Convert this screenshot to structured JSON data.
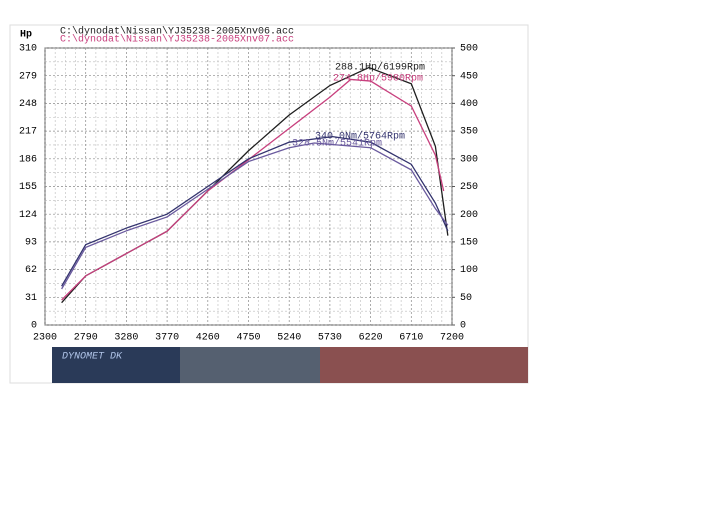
{
  "chart_data": {
    "type": "line",
    "files": [
      "C:\\dynodat\\Nissan\\YJ35238-2005Xnv06.acc",
      "C:\\dynodat\\Nissan\\YJ35238-2005Xnv07.acc"
    ],
    "file_colors": [
      "#222222",
      "#c8407e"
    ],
    "y_label": "Hp",
    "xlim": [
      2300,
      7200
    ],
    "xticks": [
      2300,
      2790,
      3280,
      3770,
      4260,
      4750,
      5240,
      5730,
      6220,
      6710,
      7200
    ],
    "ylim": [
      0,
      310
    ],
    "yticks": [
      0,
      31,
      62,
      93,
      124,
      155,
      186,
      217,
      248,
      279,
      310
    ],
    "y2lim": [
      0,
      500
    ],
    "y2ticks": [
      0,
      50,
      100,
      150,
      200,
      250,
      300,
      350,
      400,
      450,
      500
    ],
    "grid": true,
    "series": [
      {
        "color": "#1e1e1e",
        "x": [
          2500,
          2790,
          3280,
          3770,
          4260,
          4750,
          5240,
          5730,
          6199,
          6710,
          7000,
          7150
        ],
        "values": [
          25,
          55,
          80,
          105,
          150,
          195,
          235,
          268,
          288.1,
          270,
          200,
          100
        ]
      },
      {
        "color": "#c8407e",
        "x": [
          2500,
          2790,
          3280,
          3770,
          4260,
          4750,
          5240,
          5730,
          5980,
          6220,
          6710,
          7000,
          7100
        ],
        "values": [
          28,
          55,
          80,
          105,
          150,
          185,
          220,
          255,
          274.8,
          273,
          245,
          190,
          150
        ]
      },
      {
        "color": "#33336e",
        "axis": "y2",
        "x": [
          2500,
          2790,
          3280,
          3770,
          4260,
          4750,
          5240,
          5764,
          6220,
          6710,
          7000,
          7150
        ],
        "values": [
          70,
          145,
          175,
          200,
          250,
          300,
          330,
          340,
          330,
          290,
          220,
          170
        ]
      },
      {
        "color": "#6a5a9e",
        "axis": "y2",
        "x": [
          2500,
          2790,
          3280,
          3770,
          4260,
          4750,
          5240,
          5541,
          6220,
          6710,
          7000,
          7150
        ],
        "values": [
          65,
          140,
          170,
          195,
          245,
          295,
          320,
          328.5,
          320,
          280,
          210,
          180
        ]
      }
    ],
    "annotations": [
      "288.1Hp/6199Rpm",
      "274.8Hp/5980Rpm",
      "340.0Nm/5764Rpm",
      "328.5Nm/5541Rpm"
    ],
    "banner": "DYNOMET DK"
  }
}
